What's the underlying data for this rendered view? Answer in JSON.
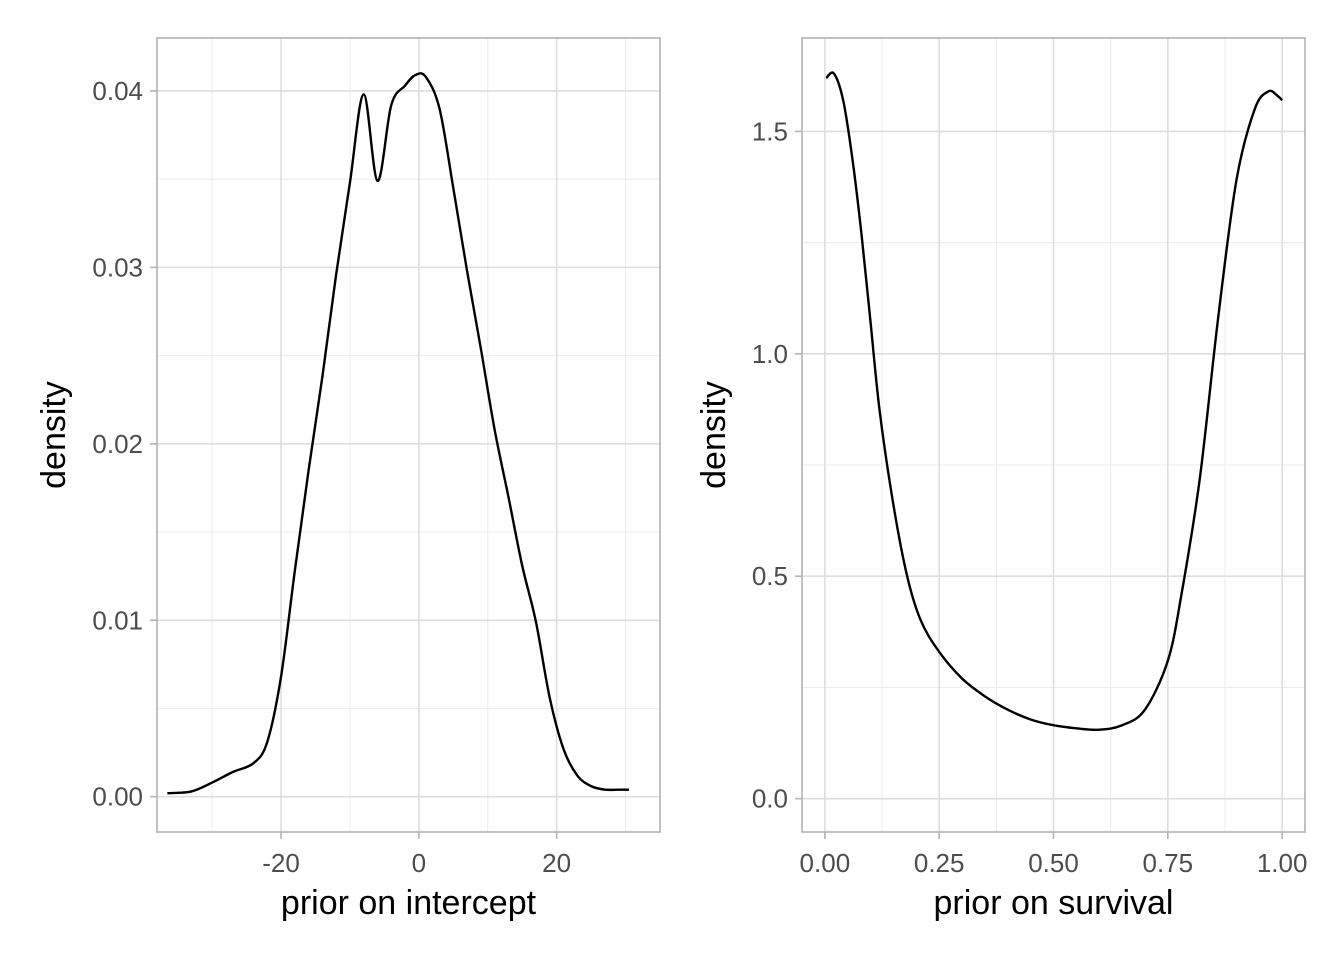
{
  "chart_data": [
    {
      "type": "line",
      "xlabel": "prior on intercept",
      "ylabel": "density",
      "xlim": [
        -38,
        35
      ],
      "ylim": [
        -0.002,
        0.043
      ],
      "x_major_ticks": [
        -20,
        0,
        20
      ],
      "x_tick_labels": [
        "-20",
        "0",
        "20"
      ],
      "x_minor_ticks": [
        -30,
        -10,
        10,
        30
      ],
      "y_major_ticks": [
        0,
        0.01,
        0.02,
        0.03,
        0.04
      ],
      "y_tick_labels": [
        "0.00",
        "0.01",
        "0.02",
        "0.03",
        "0.04"
      ],
      "y_minor_ticks": [
        0.005,
        0.015,
        0.025,
        0.035
      ],
      "grid": true,
      "x": [
        -36.5,
        -33,
        -30,
        -27,
        -24,
        -22,
        -20,
        -18,
        -16,
        -14,
        -12,
        -10,
        -8,
        -6,
        -4,
        -2,
        -0.5,
        1,
        3,
        5,
        7,
        9,
        11,
        13,
        15,
        17,
        19,
        21,
        23,
        25,
        27,
        29,
        30.5
      ],
      "y": [
        0.0002,
        0.0003,
        0.0008,
        0.0014,
        0.0019,
        0.0031,
        0.0068,
        0.0128,
        0.0185,
        0.0238,
        0.0296,
        0.0348,
        0.0398,
        0.0349,
        0.0392,
        0.0403,
        0.0409,
        0.0408,
        0.039,
        0.0345,
        0.0298,
        0.0254,
        0.0208,
        0.017,
        0.0131,
        0.0099,
        0.0056,
        0.0027,
        0.0012,
        0.0006,
        0.0004,
        0.0004,
        0.0004
      ]
    },
    {
      "type": "line",
      "xlabel": "prior on survival",
      "ylabel": "density",
      "xlim": [
        -0.05,
        1.05
      ],
      "ylim": [
        -0.075,
        1.71
      ],
      "x_major_ticks": [
        0,
        0.25,
        0.5,
        0.75,
        1
      ],
      "x_tick_labels": [
        "0.00",
        "0.25",
        "0.50",
        "0.75",
        "1.00"
      ],
      "x_minor_ticks": [
        0.125,
        0.375,
        0.625,
        0.875
      ],
      "y_major_ticks": [
        0,
        0.5,
        1,
        1.5
      ],
      "y_tick_labels": [
        "0.0",
        "0.5",
        "1.0",
        "1.5"
      ],
      "y_minor_ticks": [
        0.25,
        0.75,
        1.25
      ],
      "grid": true,
      "x": [
        0.003,
        0.02,
        0.04,
        0.06,
        0.08,
        0.1,
        0.12,
        0.15,
        0.18,
        0.21,
        0.25,
        0.3,
        0.35,
        0.4,
        0.45,
        0.5,
        0.55,
        0.6,
        0.65,
        0.7,
        0.75,
        0.78,
        0.82,
        0.86,
        0.9,
        0.94,
        0.97,
        0.99,
        1.0
      ],
      "y": [
        1.62,
        1.63,
        1.57,
        1.44,
        1.27,
        1.07,
        0.87,
        0.66,
        0.5,
        0.4,
        0.33,
        0.27,
        0.23,
        0.2,
        0.178,
        0.165,
        0.158,
        0.155,
        0.165,
        0.2,
        0.31,
        0.46,
        0.72,
        1.08,
        1.39,
        1.55,
        1.59,
        1.58,
        1.57
      ]
    }
  ]
}
